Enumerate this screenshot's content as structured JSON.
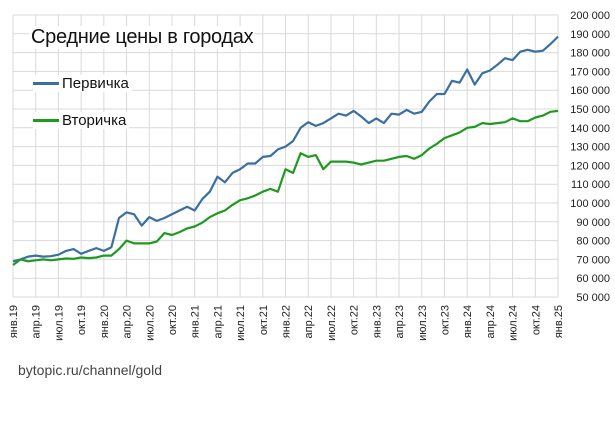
{
  "chart_data": {
    "type": "line",
    "title": "Средние цены в городах",
    "xlabel": "",
    "ylabel": "",
    "ylim": [
      50000,
      200000
    ],
    "y_ticks": [
      "50 000",
      "60 000",
      "70 000",
      "80 000",
      "90 000",
      "100 000",
      "110 000",
      "120 000",
      "130 000",
      "140 000",
      "150 000",
      "160 000",
      "170 000",
      "180 000",
      "190 000",
      "200 000"
    ],
    "x_tick_labels": [
      "янв.19",
      "апр.19",
      "июл.19",
      "окт.19",
      "янв.20",
      "апр.20",
      "июл.20",
      "окт.20",
      "янв.21",
      "апр.21",
      "июл.21",
      "окт.21",
      "янв.22",
      "апр.22",
      "июл.22",
      "окт.22",
      "янв.23",
      "апр.23",
      "июл.23",
      "окт.23",
      "янв.24",
      "апр.24",
      "июл.24",
      "окт.24",
      "янв.25"
    ],
    "grid": true,
    "legend_position": "top-left",
    "x_start": "2019-01",
    "x_step": "month",
    "series": [
      {
        "name": "Первичка",
        "color": "#3a6fa0",
        "values": [
          69000,
          70000,
          71500,
          72000,
          71500,
          71700,
          72500,
          74500,
          75500,
          73000,
          74500,
          76000,
          74500,
          76500,
          92000,
          95000,
          94000,
          88000,
          92500,
          90500,
          92000,
          94000,
          96000,
          98000,
          96000,
          102000,
          106000,
          114000,
          111000,
          116000,
          118000,
          121000,
          121000,
          124500,
          125000,
          128500,
          130000,
          133000,
          140000,
          143000,
          141000,
          142500,
          145000,
          147500,
          146500,
          149000,
          146000,
          142500,
          145000,
          142500,
          147500,
          147000,
          149500,
          147500,
          148500,
          154000,
          158000,
          158000,
          165000,
          164000,
          171000,
          163000,
          169000,
          170500,
          173500,
          177000,
          176000,
          180500,
          181500,
          180500,
          181000,
          184500,
          188500
        ]
      },
      {
        "name": "Вторичка",
        "color": "#1f9a1f",
        "values": [
          67000,
          70000,
          69000,
          69500,
          70000,
          69500,
          70000,
          70500,
          70300,
          71000,
          70700,
          71000,
          72000,
          72000,
          75500,
          80000,
          78500,
          78500,
          78500,
          79500,
          84000,
          83000,
          84500,
          86500,
          87500,
          89500,
          92500,
          94500,
          96000,
          99000,
          101500,
          102500,
          104000,
          106000,
          107500,
          106000,
          118000,
          116000,
          126500,
          124500,
          125500,
          118000,
          122000,
          122000,
          122000,
          121500,
          120500,
          121500,
          122500,
          122500,
          123500,
          124500,
          125000,
          123500,
          125500,
          129000,
          131500,
          134500,
          136000,
          137500,
          140000,
          140500,
          142500,
          142000,
          142500,
          143000,
          145000,
          143500,
          143500,
          145500,
          146500,
          148500,
          149000
        ]
      }
    ],
    "annotations": [
      "bytopic.ru/channel/gold"
    ]
  },
  "legend": {
    "items": [
      {
        "label": "Первичка"
      },
      {
        "label": "Вторичка"
      }
    ]
  },
  "watermark": "bytopic.ru/channel/gold"
}
